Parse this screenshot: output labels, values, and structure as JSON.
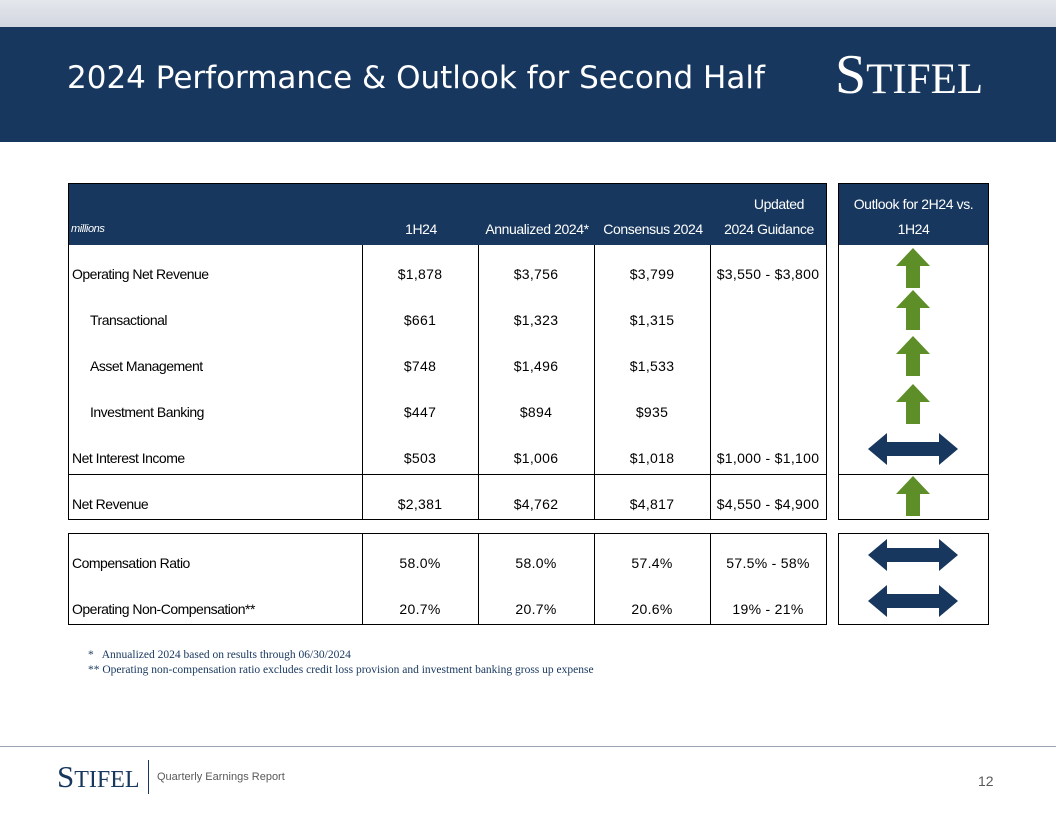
{
  "header": {
    "title": "2024 Performance & Outlook for Second Half",
    "logo_first": "S",
    "logo_rest": "TIFEL"
  },
  "table": {
    "columns": {
      "units": "millions",
      "h1": "1H24",
      "annualized": "Annualized 2024*",
      "consensus": "Consensus 2024",
      "guidance_line1": "Updated",
      "guidance_line2": "2024 Guidance",
      "outlook_line1": "Outlook for 2H24 vs.",
      "outlook_line2": "1H24"
    },
    "rows": [
      {
        "label": "Operating Net Revenue",
        "h1": "$1,878",
        "annualized": "$3,756",
        "consensus": "$3,799",
        "guidance": "$3,550 - $3,800",
        "outlook": "up"
      },
      {
        "label": "Transactional",
        "h1": "$661",
        "annualized": "$1,323",
        "consensus": "$1,315",
        "guidance": "",
        "outlook": "up"
      },
      {
        "label": "Asset Management",
        "h1": "$748",
        "annualized": "$1,496",
        "consensus": "$1,533",
        "guidance": "",
        "outlook": "up"
      },
      {
        "label": "Investment Banking",
        "h1": "$447",
        "annualized": "$894",
        "consensus": "$935",
        "guidance": "",
        "outlook": "up"
      },
      {
        "label": "Net Interest Income",
        "h1": "$503",
        "annualized": "$1,006",
        "consensus": "$1,018",
        "guidance": "$1,000 - $1,100",
        "outlook": "flat"
      },
      {
        "label": "Net Revenue",
        "h1": "$2,381",
        "annualized": "$4,762",
        "consensus": "$4,817",
        "guidance": "$4,550 - $4,900",
        "outlook": "up"
      },
      {
        "label": "Compensation Ratio",
        "h1": "58.0%",
        "annualized": "58.0%",
        "consensus": "57.4%",
        "guidance": "57.5% - 58%",
        "outlook": "flat"
      },
      {
        "label": "Operating Non-Compensation**",
        "h1": "20.7%",
        "annualized": "20.7%",
        "consensus": "20.6%",
        "guidance": "19% - 21%",
        "outlook": "flat"
      }
    ]
  },
  "footnotes": [
    "*   Annualized 2024 based on results through 06/30/2024",
    "** Operating non-compensation ratio excludes credit loss provision and investment banking gross up expense"
  ],
  "footer": {
    "logo_first": "S",
    "logo_rest": "TIFEL",
    "report": "Quarterly Earnings Report",
    "page": "12"
  },
  "colors": {
    "navy": "#17375e",
    "arrow_green": "#5e8e28"
  }
}
